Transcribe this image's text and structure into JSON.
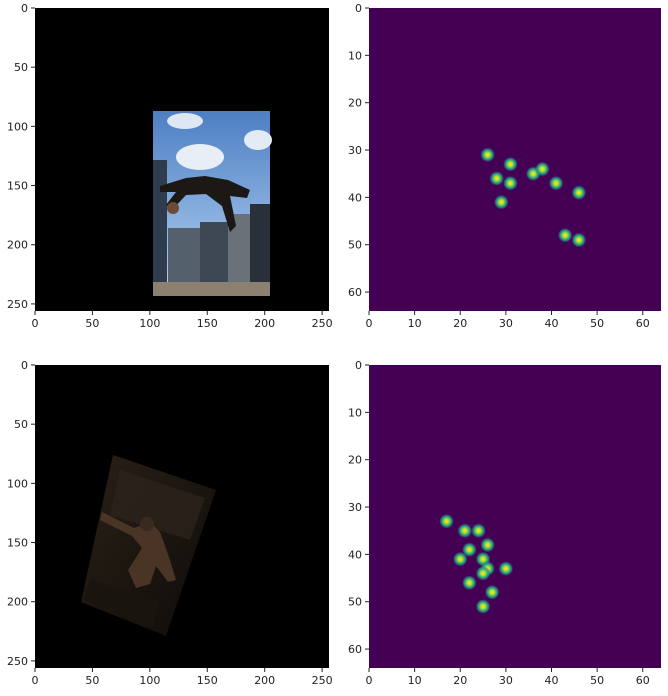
{
  "colors": {
    "image_background": "#000000",
    "heatmap_background": "#440154",
    "heatmap_peak": "#fde725",
    "heatmap_mid": "#21918c",
    "tick": "#222222"
  },
  "chart_data": [
    {
      "type": "image",
      "xlim": [
        0,
        256
      ],
      "ylim": [
        256,
        0
      ],
      "xticks": [
        0,
        50,
        100,
        150,
        200,
        250
      ],
      "yticks": [
        0,
        50,
        100,
        150,
        200,
        250
      ],
      "xtick_labels": [
        "0",
        "50",
        "100",
        "150",
        "200",
        "250"
      ],
      "ytick_labels": [
        "0",
        "50",
        "100",
        "150",
        "200",
        "250"
      ],
      "content": "photo of person doing backflip against city buildings, centered on black canvas",
      "photo_extent": {
        "x0": 103,
        "x1": 206,
        "y0": 88,
        "y1": 242
      }
    },
    {
      "type": "heatmap",
      "xlim": [
        0,
        64
      ],
      "ylim": [
        64,
        0
      ],
      "xticks": [
        0,
        10,
        20,
        30,
        40,
        50,
        60
      ],
      "yticks": [
        0,
        10,
        20,
        30,
        40,
        50,
        60
      ],
      "xtick_labels": [
        "0",
        "10",
        "20",
        "30",
        "40",
        "50",
        "60"
      ],
      "ytick_labels": [
        "0",
        "10",
        "20",
        "30",
        "40",
        "50",
        "60"
      ],
      "peaks": [
        {
          "x": 26,
          "y": 31
        },
        {
          "x": 31,
          "y": 33
        },
        {
          "x": 28,
          "y": 36
        },
        {
          "x": 31,
          "y": 37
        },
        {
          "x": 36,
          "y": 35
        },
        {
          "x": 38,
          "y": 34
        },
        {
          "x": 41,
          "y": 37
        },
        {
          "x": 46,
          "y": 39
        },
        {
          "x": 29,
          "y": 41
        },
        {
          "x": 43,
          "y": 48
        },
        {
          "x": 46,
          "y": 49
        }
      ]
    },
    {
      "type": "image",
      "xlim": [
        0,
        256
      ],
      "ylim": [
        256,
        0
      ],
      "xticks": [
        0,
        50,
        100,
        150,
        200,
        250
      ],
      "yticks": [
        0,
        50,
        100,
        150,
        200,
        250
      ],
      "xtick_labels": [
        "0",
        "50",
        "100",
        "150",
        "200",
        "250"
      ],
      "ytick_labels": [
        "0",
        "50",
        "100",
        "150",
        "200",
        "250"
      ],
      "content": "rotated dark photo of person climbing stairs on black canvas",
      "photo_corners": [
        [
          62,
          77
        ],
        [
          160,
          160
        ],
        [
          139,
          229
        ],
        [
          40,
          145
        ]
      ]
    },
    {
      "type": "heatmap",
      "xlim": [
        0,
        64
      ],
      "ylim": [
        64,
        0
      ],
      "xticks": [
        0,
        10,
        20,
        30,
        40,
        50,
        60
      ],
      "yticks": [
        0,
        10,
        20,
        30,
        40,
        50,
        60
      ],
      "xtick_labels": [
        "0",
        "10",
        "20",
        "30",
        "40",
        "50",
        "60"
      ],
      "ytick_labels": [
        "0",
        "10",
        "20",
        "30",
        "40",
        "50",
        "60"
      ],
      "peaks": [
        {
          "x": 17,
          "y": 33
        },
        {
          "x": 21,
          "y": 35
        },
        {
          "x": 24,
          "y": 35
        },
        {
          "x": 26,
          "y": 38
        },
        {
          "x": 22,
          "y": 39
        },
        {
          "x": 20,
          "y": 41
        },
        {
          "x": 25,
          "y": 41
        },
        {
          "x": 26,
          "y": 43
        },
        {
          "x": 25,
          "y": 44
        },
        {
          "x": 30,
          "y": 43
        },
        {
          "x": 22,
          "y": 46
        },
        {
          "x": 27,
          "y": 48
        },
        {
          "x": 25,
          "y": 51
        }
      ]
    }
  ]
}
